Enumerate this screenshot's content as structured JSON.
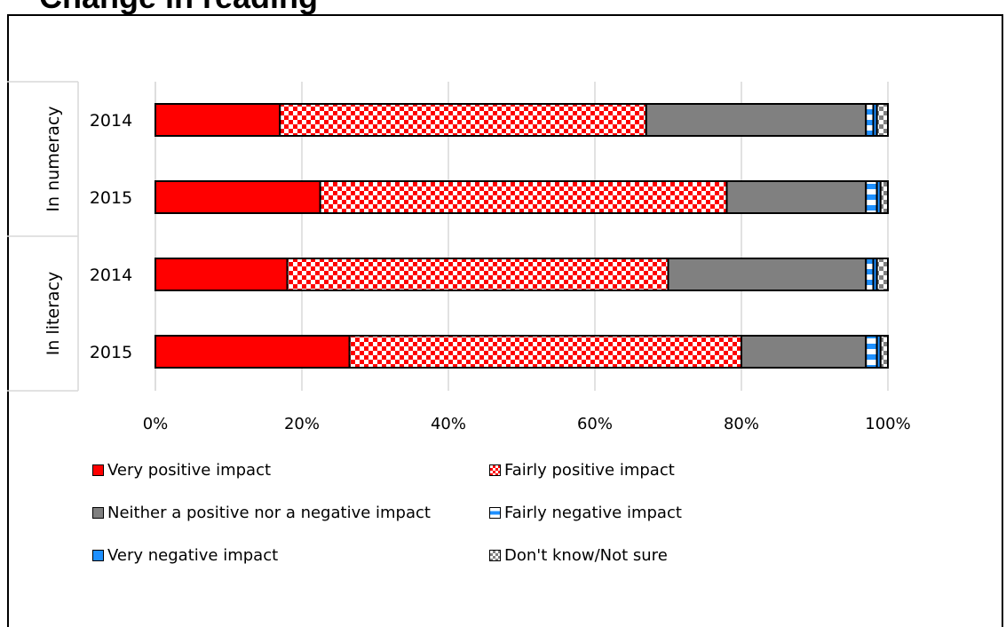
{
  "header": {
    "title": "Change in reading"
  },
  "chart_data": {
    "type": "bar",
    "orientation": "horizontal",
    "stacked": "100%",
    "groups": [
      {
        "label": "In numeracy",
        "categories": [
          "2014",
          "2015"
        ]
      },
      {
        "label": "In literacy",
        "categories": [
          "2014",
          "2015"
        ]
      }
    ],
    "categories": [
      "In numeracy 2014",
      "In numeracy 2015",
      "In literacy 2014",
      "In literacy 2015"
    ],
    "series": [
      {
        "name": "Very positive impact",
        "values": [
          17,
          22.5,
          18,
          26.5
        ],
        "color": "#ff0000",
        "pattern": "solid"
      },
      {
        "name": "Fairly positive impact",
        "values": [
          50,
          55.5,
          52,
          53.5
        ],
        "color": "#ff0000",
        "pattern": "checker"
      },
      {
        "name": "Neither a positive nor a negative impact",
        "values": [
          30,
          19,
          27,
          17
        ],
        "color": "#808080",
        "pattern": "solid"
      },
      {
        "name": "Fairly negative impact",
        "values": [
          1,
          1.5,
          1,
          1.5
        ],
        "color": "#1e90ff",
        "pattern": "stripe"
      },
      {
        "name": "Very negative impact",
        "values": [
          0.5,
          0.5,
          0.5,
          0.5
        ],
        "color": "#1e90ff",
        "pattern": "solid"
      },
      {
        "name": "Don't know/Not sure",
        "values": [
          1.5,
          1,
          1.5,
          1
        ],
        "color": "#808080",
        "pattern": "checker"
      }
    ],
    "xlim": [
      0,
      100
    ],
    "xticks": [
      "0%",
      "20%",
      "40%",
      "60%",
      "80%",
      "100%"
    ],
    "grid": true,
    "legend_position": "bottom"
  }
}
